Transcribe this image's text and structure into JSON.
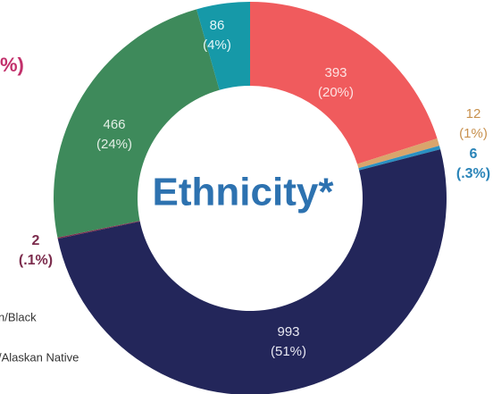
{
  "chart_data": {
    "type": "pie",
    "title": "Ethnicity*",
    "values": [
      393,
      12,
      6,
      993,
      2,
      466,
      86
    ],
    "percents": [
      20,
      1,
      0.3,
      51,
      0.1,
      24,
      4
    ],
    "percent_labels": [
      "(20%)",
      "(1%)",
      "(.3%)",
      "(51%)",
      "(.1%)",
      "(24%)",
      "(4%)"
    ],
    "colors": [
      "#f05b5d",
      "#d9a56c",
      "#2a90c2",
      "#23265a",
      "#7b2b4c",
      "#3e8a5b",
      "#1699a8"
    ]
  },
  "fragments": [
    "%)",
    "n/Black",
    "/Alaskan Native"
  ]
}
